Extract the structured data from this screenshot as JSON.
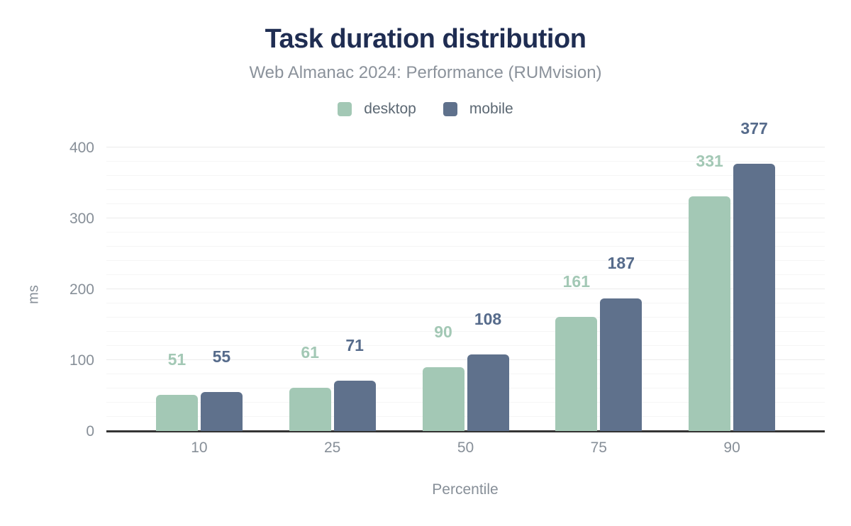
{
  "chart_data": {
    "type": "bar",
    "title": "Task duration distribution",
    "subtitle": "Web Almanac 2024: Performance (RUMvision)",
    "xlabel": "Percentile",
    "ylabel": "ms",
    "categories": [
      "10",
      "25",
      "50",
      "75",
      "90"
    ],
    "series": [
      {
        "name": "desktop",
        "color": "#a3c8b5",
        "label_color": "#a3c8b5",
        "values": [
          51,
          61,
          90,
          161,
          331
        ]
      },
      {
        "name": "mobile",
        "color": "#5f718c",
        "label_color": "#566b8b",
        "values": [
          55,
          71,
          108,
          187,
          377
        ]
      }
    ],
    "y_ticks": [
      0,
      100,
      200,
      300,
      400
    ],
    "ylim": [
      0,
      400
    ],
    "grid_minor_step": 20,
    "grid": true,
    "legend_position": "top"
  },
  "colors": {
    "title": "#1f2d52",
    "subtitle": "#8b929b",
    "axis_line": "#333333",
    "tick_label": "#878f98",
    "grid_minor": "#f5f5f5",
    "grid_major": "#ebebeb",
    "background": "#ffffff"
  }
}
